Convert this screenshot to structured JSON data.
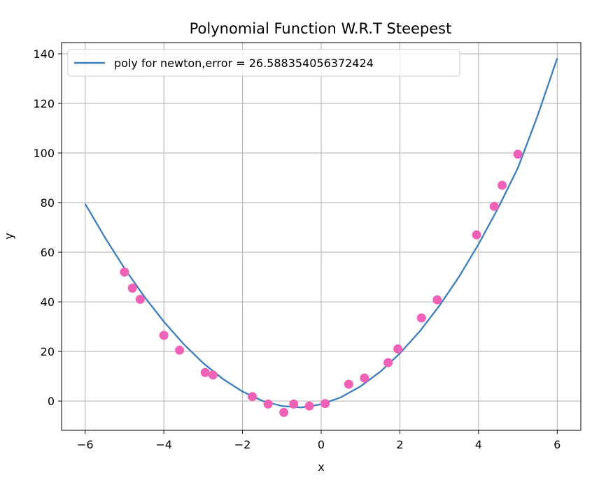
{
  "chart_data": {
    "type": "scatter",
    "title": "Polynomial Function W.R.T Steepest",
    "xlabel": "x",
    "ylabel": "y",
    "xlim": [
      -6.6,
      6.6
    ],
    "ylim": [
      -11.8,
      144.5
    ],
    "grid": true,
    "legend_position": "top-left",
    "x_ticks": [
      -6,
      -4,
      -2,
      0,
      2,
      4,
      6
    ],
    "x_tick_labels": [
      "−6",
      "−4",
      "−2",
      "0",
      "2",
      "4",
      "6"
    ],
    "y_ticks": [
      0,
      20,
      40,
      60,
      80,
      100,
      120,
      140
    ],
    "y_tick_labels": [
      "0",
      "20",
      "40",
      "60",
      "80",
      "100",
      "120",
      "140"
    ],
    "series": [
      {
        "name": "poly for newton,error = 26.588354056372424",
        "kind": "line",
        "color": "#3d7ebf",
        "x": [
          -6.0,
          -5.5,
          -5.0,
          -4.5,
          -4.0,
          -3.5,
          -3.0,
          -2.5,
          -2.0,
          -1.5,
          -1.0,
          -0.5,
          0.0,
          0.5,
          1.0,
          1.5,
          2.0,
          2.5,
          3.0,
          3.5,
          4.0,
          4.5,
          5.0,
          5.5,
          6.0
        ],
        "y": [
          79.5,
          66.0,
          53.5,
          42.2,
          32.0,
          23.0,
          15.3,
          8.9,
          3.8,
          0.1,
          -2.0,
          -2.6,
          -1.3,
          1.5,
          5.9,
          11.8,
          19.2,
          28.0,
          38.3,
          50.0,
          63.2,
          77.9,
          94.0,
          115.0,
          138.2
        ]
      },
      {
        "kind": "scatter",
        "color": "#f062b8",
        "x": [
          -5.0,
          -4.8,
          -4.6,
          -4.0,
          -3.6,
          -2.95,
          -2.75,
          -1.75,
          -1.35,
          -0.95,
          -0.7,
          -0.3,
          0.1,
          0.7,
          1.1,
          1.7,
          1.95,
          2.55,
          2.95,
          3.95,
          4.4,
          4.6,
          5.0
        ],
        "y": [
          52.0,
          45.5,
          41.0,
          26.5,
          20.5,
          11.5,
          10.5,
          1.8,
          -1.2,
          -4.6,
          -1.2,
          -2.0,
          -1.0,
          6.8,
          9.3,
          15.5,
          21.0,
          33.5,
          40.8,
          67.0,
          78.5,
          87.0,
          99.5
        ]
      }
    ]
  },
  "colors": {
    "line": "#3d7ebf",
    "points": "#f062b8",
    "grid": "#b0b0b0",
    "frame": "#000000"
  }
}
